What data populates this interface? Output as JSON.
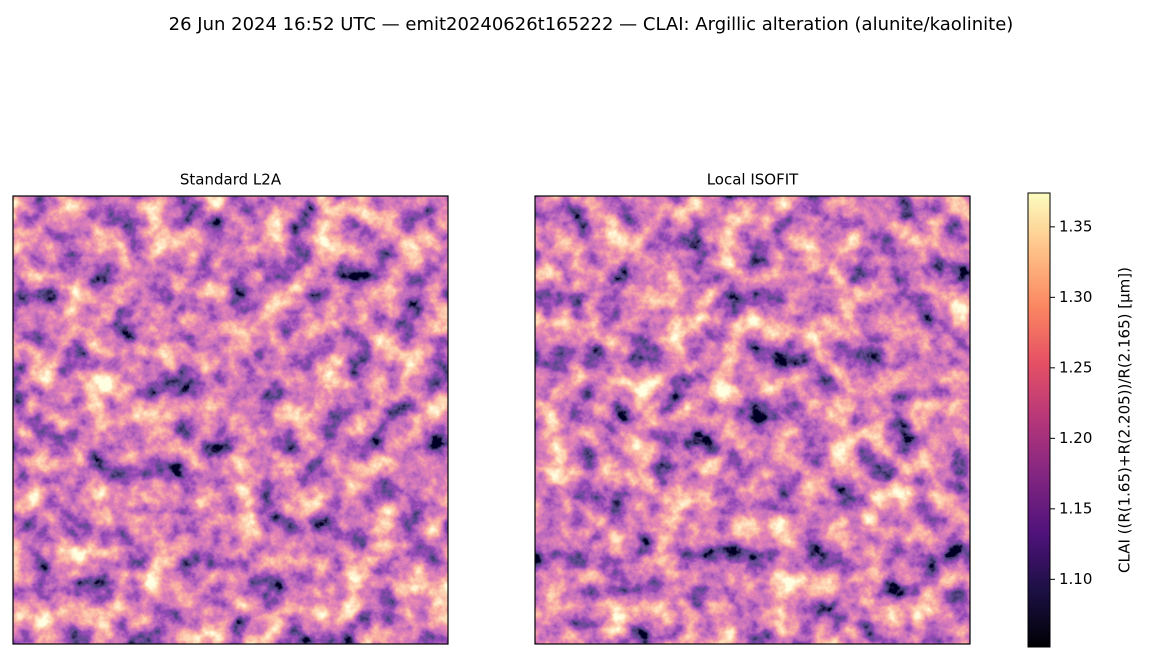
{
  "chart_data": {
    "type": "image",
    "title": "26 Jun 2024 16:52 UTC — emit20240626t165222 — CLAI: Argillic alteration (alunite/kaolinite)",
    "panels": [
      {
        "title": "Standard L2A"
      },
      {
        "title": "Local ISOFIT"
      }
    ],
    "colormap": "magma",
    "colorbar": {
      "label": "CLAI  ((R(1.65)+R(2.205))/R(2.165)  [µm])",
      "ylim": [
        1.052,
        1.374
      ],
      "yticks": [
        {
          "value": 1.1,
          "label": "1.10"
        },
        {
          "value": 1.15,
          "label": "1.15"
        },
        {
          "value": 1.2,
          "label": "1.20"
        },
        {
          "value": 1.25,
          "label": "1.25"
        },
        {
          "value": 1.3,
          "label": "1.30"
        },
        {
          "value": 1.35,
          "label": "1.35"
        }
      ]
    }
  }
}
